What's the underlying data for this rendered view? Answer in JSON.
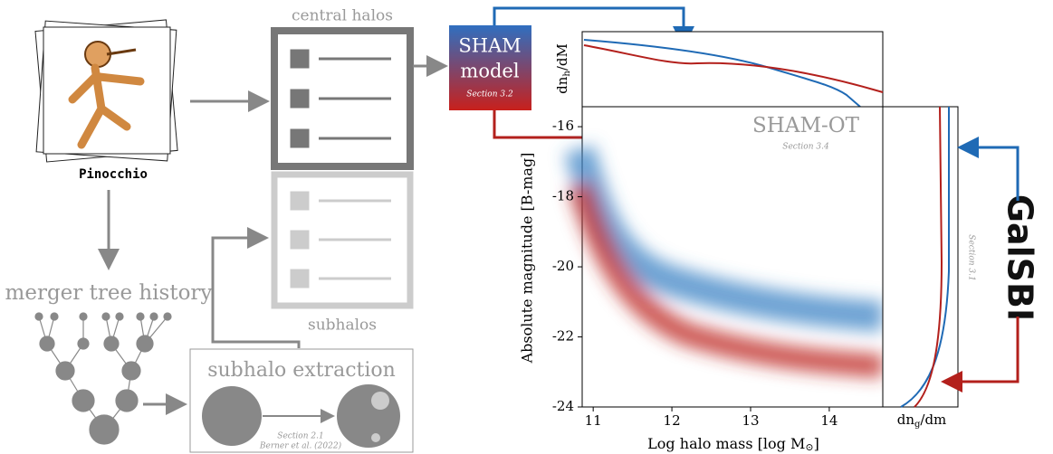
{
  "pinocchio": {
    "label": "Pinocchio"
  },
  "merger_tree": {
    "label": "merger tree history"
  },
  "subhalo_extraction": {
    "title": "subhalo extraction",
    "section": "Section 2.1",
    "reference": "Berner et al. (2022)"
  },
  "central_halos": {
    "label": "central halos"
  },
  "subhalos": {
    "label": "subhalos"
  },
  "sham_model": {
    "line1": "SHAM",
    "line2": "model",
    "section": "Section 3.2"
  },
  "sham_ot": {
    "title": "SHAM-OT",
    "section": "Section 3.4",
    "x_label": {
      "text": "Log halo mass [log M",
      "sub": "⊙",
      "end": "]"
    },
    "y_label": "Absolute magnitude [B-mag]",
    "top_label": {
      "text": "dn",
      "sub": "h",
      "end": "/dM"
    },
    "right_label": {
      "text": "dn",
      "sub": "g",
      "end": "/dm"
    },
    "xlim": [
      10.86,
      14.68
    ],
    "ylim": [
      -24,
      -15.43
    ],
    "xticks": [
      11,
      12,
      13,
      14
    ],
    "yticks": [
      -16,
      -18,
      -20,
      -22,
      -24
    ]
  },
  "galsbi": {
    "label": "GalSBI",
    "section": "Section 3.1"
  }
}
